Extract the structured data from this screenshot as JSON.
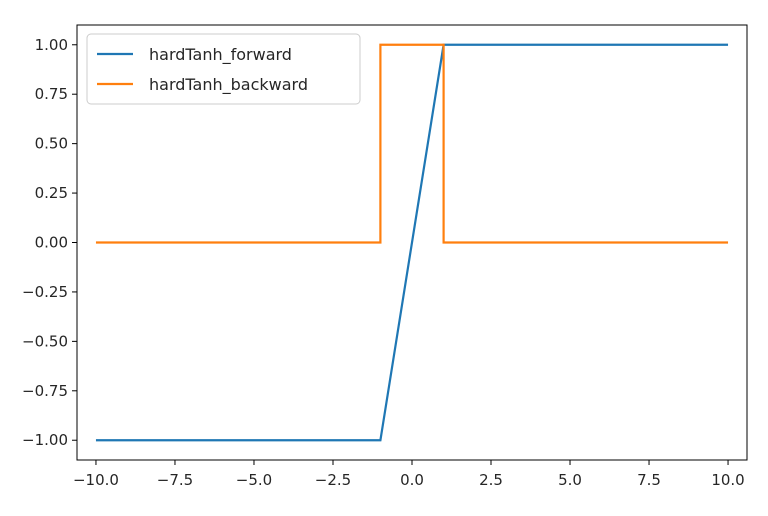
{
  "chart_data": {
    "type": "line",
    "title": "",
    "xlabel": "",
    "ylabel": "",
    "xlim": [
      -10.6,
      10.6
    ],
    "ylim": [
      -1.1,
      1.1
    ],
    "x_ticks": [
      -10.0,
      -7.5,
      -5.0,
      -2.5,
      0.0,
      2.5,
      5.0,
      7.5,
      10.0
    ],
    "x_tick_labels": [
      "−10.0",
      "−7.5",
      "−5.0",
      "−2.5",
      "0.0",
      "2.5",
      "5.0",
      "7.5",
      "10.0"
    ],
    "y_ticks": [
      1.0,
      0.75,
      0.5,
      0.25,
      0.0,
      -0.25,
      -0.5,
      -0.75,
      -1.0
    ],
    "y_tick_labels": [
      "1.00",
      "0.75",
      "0.50",
      "0.25",
      "0.00",
      "−0.25",
      "−0.50",
      "−0.75",
      "−1.00"
    ],
    "grid": false,
    "legend_position": "top-left",
    "series": [
      {
        "name": "hardTanh_forward",
        "color": "#1f77b4",
        "x": [
          -10,
          -1,
          1,
          10
        ],
        "y": [
          -1,
          -1,
          1,
          1
        ]
      },
      {
        "name": "hardTanh_backward",
        "color": "#ff7f0e",
        "x": [
          -10,
          -1,
          -1,
          1,
          1,
          10
        ],
        "y": [
          0,
          0,
          1,
          1,
          0,
          0
        ]
      }
    ]
  }
}
